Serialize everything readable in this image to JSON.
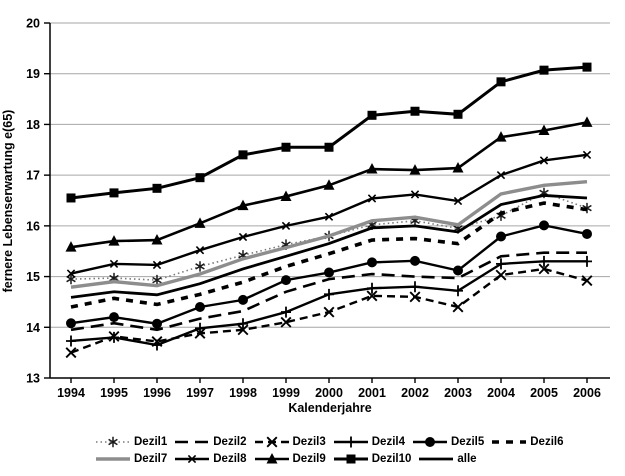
{
  "figure": {
    "background": "#ffffff",
    "grid_color": "#a6a6a6",
    "axis_color": "#000000"
  },
  "chart_data": {
    "type": "line",
    "title": "",
    "ylabel": "fernere Lebenserwartung e(65)",
    "xlabel": "Kalenderjahre",
    "ylim": [
      13,
      20
    ],
    "y_ticks": [
      20,
      19,
      18,
      17,
      16,
      15,
      14,
      13
    ],
    "grid": true,
    "legend_position": "bottom",
    "x": [
      1994,
      1995,
      1996,
      1997,
      1998,
      1999,
      2000,
      2001,
      2002,
      2003,
      2004,
      2005,
      2006
    ],
    "series": [
      {
        "name": "Dezil1",
        "values": [
          14.95,
          14.97,
          14.93,
          15.2,
          15.42,
          15.63,
          15.8,
          16.02,
          16.1,
          15.95,
          16.2,
          16.65,
          16.35
        ],
        "color": "#7a7a7a",
        "marker_color": "#1a1a1a",
        "width": 1.6,
        "dash": "1.5,3",
        "marker": "star",
        "z": 0
      },
      {
        "name": "Dezil2",
        "values": [
          13.95,
          14.08,
          13.95,
          14.17,
          14.32,
          14.7,
          14.95,
          15.05,
          15.0,
          14.97,
          15.4,
          15.47,
          15.47
        ],
        "color": "#000000",
        "marker_color": "#000000",
        "width": 2.6,
        "dash": "13,7",
        "marker": "none",
        "z": 1
      },
      {
        "name": "Dezil3",
        "values": [
          13.5,
          13.82,
          13.72,
          13.88,
          13.95,
          14.1,
          14.3,
          14.62,
          14.6,
          14.4,
          15.03,
          15.15,
          14.92
        ],
        "color": "#000000",
        "marker_color": "#000000",
        "width": 2.4,
        "dash": "8,5",
        "marker": "X",
        "z": 1
      },
      {
        "name": "Dezil4",
        "values": [
          13.73,
          13.8,
          13.65,
          13.98,
          14.07,
          14.3,
          14.65,
          14.77,
          14.8,
          14.72,
          15.25,
          15.3,
          15.3
        ],
        "color": "#000000",
        "marker_color": "#000000",
        "width": 2.4,
        "dash": "",
        "marker": "plus",
        "z": 1
      },
      {
        "name": "Dezil5",
        "values": [
          14.08,
          14.2,
          14.07,
          14.4,
          14.54,
          14.93,
          15.08,
          15.28,
          15.31,
          15.12,
          15.79,
          16.01,
          15.84
        ],
        "color": "#000000",
        "marker_color": "#000000",
        "width": 2.4,
        "dash": "",
        "marker": "circle",
        "z": 1
      },
      {
        "name": "Dezil6",
        "values": [
          14.4,
          14.57,
          14.45,
          14.65,
          14.89,
          15.2,
          15.45,
          15.72,
          15.75,
          15.65,
          16.25,
          16.45,
          16.32
        ],
        "color": "#000000",
        "marker_color": "#000000",
        "width": 3.6,
        "dash": "7,7",
        "marker": "none",
        "z": 1
      },
      {
        "name": "Dezil7",
        "values": [
          14.79,
          14.9,
          14.82,
          15.05,
          15.35,
          15.57,
          15.8,
          16.1,
          16.17,
          16.02,
          16.63,
          16.8,
          16.87
        ],
        "color": "#8d8d8d",
        "marker_color": "#8d8d8d",
        "width": 3.4,
        "dash": "",
        "marker": "none",
        "z": 0
      },
      {
        "name": "Dezil8",
        "values": [
          15.06,
          15.25,
          15.23,
          15.52,
          15.78,
          16.0,
          16.18,
          16.54,
          16.62,
          16.49,
          17.0,
          17.29,
          17.4
        ],
        "color": "#000000",
        "marker_color": "#000000",
        "width": 2.4,
        "dash": "",
        "marker": "x",
        "z": 1
      },
      {
        "name": "Dezil9",
        "values": [
          15.58,
          15.7,
          15.72,
          16.05,
          16.4,
          16.58,
          16.8,
          17.12,
          17.1,
          17.14,
          17.75,
          17.88,
          18.04
        ],
        "color": "#000000",
        "marker_color": "#000000",
        "width": 2.6,
        "dash": "",
        "marker": "triangle",
        "z": 1
      },
      {
        "name": "Dezil10",
        "values": [
          16.55,
          16.65,
          16.74,
          16.95,
          17.4,
          17.55,
          17.55,
          18.18,
          18.26,
          18.2,
          18.84,
          19.07,
          19.13
        ],
        "color": "#000000",
        "marker_color": "#000000",
        "width": 3.0,
        "dash": "",
        "marker": "square",
        "z": 1
      },
      {
        "name": "alle",
        "values": [
          14.59,
          14.7,
          14.64,
          14.86,
          15.15,
          15.4,
          15.65,
          15.96,
          16.0,
          15.88,
          16.42,
          16.6,
          16.55
        ],
        "color": "#000000",
        "marker_color": "#000000",
        "width": 2.8,
        "dash": "",
        "marker": "none",
        "z": 1
      }
    ]
  }
}
